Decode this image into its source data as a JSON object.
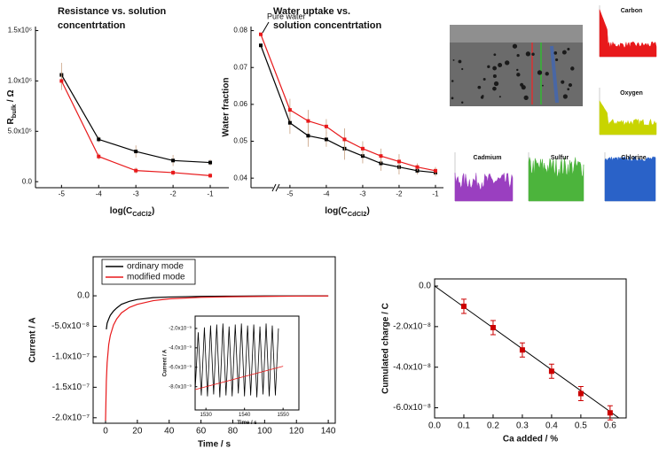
{
  "chart_data": [
    {
      "type": "line",
      "title": [
        "Resistance  vs. solution",
        "concentrtation"
      ],
      "x_label": {
        "base": "log(C",
        "sub": "CdCl2",
        "tail": ")"
      },
      "y_label": {
        "base": "R",
        "sub": "bulk",
        "tail": " / Ω"
      },
      "x": [
        -5,
        -4,
        -3,
        -2,
        -1
      ],
      "marker": "square",
      "series": [
        {
          "color": "#000000",
          "values": [
            1060000,
            420000,
            300000,
            210000,
            190000
          ],
          "errors": [
            120000,
            30000,
            60000,
            55000,
            30000
          ]
        },
        {
          "color": "#e8191b",
          "values": [
            1000000,
            250000,
            110000,
            90000,
            60000
          ],
          "errors": [
            90000,
            30000,
            30000,
            30000,
            25000
          ]
        }
      ],
      "xlim": [
        -5.7,
        -0.5
      ],
      "xticks": [
        -5,
        -4,
        -3,
        -2,
        -1
      ],
      "ylim": [
        -60000,
        1540000
      ],
      "yticks": [
        {
          "value": 0,
          "label": "0.0"
        },
        {
          "value": 500000,
          "label": "5.0x10⁵"
        },
        {
          "value": 1000000,
          "label": "1.0x10⁶"
        },
        {
          "value": 1500000,
          "label": "1.5x10⁶"
        }
      ]
    },
    {
      "type": "line",
      "title": [
        "Water uptake vs.",
        "solution concentrtation"
      ],
      "x_label": {
        "base": "log(C",
        "sub": "CdCl2",
        "tail": ")"
      },
      "y_label": "Water fraction",
      "annotation": "Pure water",
      "axis_break": true,
      "x": [
        -5,
        -4.5,
        -4,
        -3.5,
        -3,
        -2.5,
        -2,
        -1.5,
        -1
      ],
      "marker": "square",
      "series": [
        {
          "color": "#000000",
          "pure_water": 0.076,
          "values": [
            0.055,
            0.0515,
            0.0505,
            0.048,
            0.046,
            0.044,
            0.043,
            0.042,
            0.0415
          ],
          "errors": [
            0.003,
            0.003,
            0.002,
            0.003,
            0.002,
            0.002,
            0.002,
            0.001,
            0.001
          ]
        },
        {
          "color": "#e8191b",
          "pure_water": 0.079,
          "values": [
            0.0585,
            0.0555,
            0.054,
            0.0505,
            0.048,
            0.046,
            0.0445,
            0.043,
            0.042
          ],
          "errors": [
            0.003,
            0.003,
            0.002,
            0.003,
            0.002,
            0.002,
            0.002,
            0.001,
            0.001
          ]
        }
      ],
      "xlim": [
        -6.07,
        -0.78
      ],
      "xticks": [
        -5,
        -4,
        -3,
        -2,
        -1
      ],
      "ylim": [
        0.0374,
        0.0811
      ],
      "yticks": [
        0.04,
        0.05,
        0.06,
        0.07,
        0.08
      ]
    },
    {
      "type": "line",
      "x_label": "Time / s",
      "y_label": "Current / A",
      "legend": "upper left",
      "x": [
        0,
        0.5,
        1,
        2,
        3,
        5,
        7,
        10,
        15,
        20,
        30,
        40,
        60,
        80,
        100,
        120,
        140
      ],
      "series": [
        {
          "name": "ordinary mode",
          "color": "#000000",
          "values": [
            null,
            -5.5e-08,
            -4.5e-08,
            -3.8e-08,
            -3.2e-08,
            -2.5e-08,
            -2e-08,
            -1.4e-08,
            -9e-09,
            -6e-09,
            -3e-09,
            -2e-09,
            -1e-09,
            -5e-10,
            -3e-10,
            -2e-10,
            -1e-10
          ]
        },
        {
          "name": "modified mode",
          "color": "#e8191b",
          "values": [
            -2.05e-07,
            -1.4e-07,
            -1.1e-07,
            -8e-08,
            -6.5e-08,
            -4.8e-08,
            -3.8e-08,
            -2.8e-08,
            -1.9e-08,
            -1.4e-08,
            -8e-09,
            -5e-09,
            -2.5e-09,
            -1.5e-09,
            -1e-09,
            -5e-10,
            -3e-10
          ]
        }
      ],
      "xlim": [
        -7.8,
        144.4
      ],
      "xticks": [
        0,
        20,
        40,
        60,
        80,
        100,
        120,
        140
      ],
      "ylim": [
        -2.09e-07,
        6.4e-08
      ],
      "yticks": [
        {
          "value": 0,
          "label": "0.0"
        },
        {
          "value": -5e-08,
          "label": "-5.0x10⁻⁸"
        },
        {
          "value": -1e-07,
          "label": "-1.0x10⁻⁷"
        },
        {
          "value": -1.5e-07,
          "label": "-1.5x10⁻⁷"
        },
        {
          "value": -2e-07,
          "label": "-2.0x10⁻⁷"
        }
      ]
    },
    {
      "type": "line",
      "x_label": "Time / s",
      "y_label": "Current / A",
      "x": [
        1527.2,
        1528,
        1528.8,
        1529.6,
        1530.4,
        1531.2,
        1532,
        1532.8,
        1533.6,
        1534.4,
        1535.2,
        1536,
        1536.8,
        1537.6,
        1538.4,
        1539.2,
        1540,
        1540.8,
        1541.6,
        1542.4,
        1543.2,
        1544,
        1544.8,
        1545.6,
        1546.4,
        1547.2,
        1548,
        1548.8
      ],
      "series": [
        {
          "color": "#000000",
          "values": [
            -8.4e-09,
            -2.4e-09,
            -8.9e-09,
            -1.9e-09,
            -9e-09,
            -1.7e-09,
            -8.8e-09,
            -1.6e-09,
            -9.1e-09,
            -1.5e-09,
            -8.9e-09,
            -1.8e-09,
            -9e-09,
            -1.6e-09,
            -8.7e-09,
            -1.5e-09,
            -9e-09,
            -1.7e-09,
            -8.9e-09,
            -1.6e-09,
            -9.1e-09,
            -1.8e-09,
            -8.8e-09,
            -1.5e-09,
            -9e-09,
            -1.7e-09,
            -8.9e-09,
            -2e-09
          ]
        },
        {
          "color": "#e8191b",
          "x": [
            1527.2,
            1550
          ],
          "values": [
            -8.3e-09,
            -5.9e-09
          ]
        }
      ],
      "xlim": [
        1527.2,
        1554.1
      ],
      "xticks": [
        1530,
        1540,
        1550
      ],
      "ylim": [
        -1.04e-08,
        -7.3e-10
      ],
      "yticks": [
        {
          "value": -2e-09,
          "label": "-2.0x10⁻⁹"
        },
        {
          "value": -4e-09,
          "label": "-4.0x10⁻⁹"
        },
        {
          "value": -6e-09,
          "label": "-6.0x10⁻⁹"
        },
        {
          "value": -8e-09,
          "label": "-8.0x10⁻⁹"
        }
      ]
    },
    {
      "type": "scatter",
      "x_label": "Ca added / %",
      "y_label": "Cumulated charge / C",
      "x": [
        0.1,
        0.2,
        0.3,
        0.4,
        0.5,
        0.6
      ],
      "color": "#cc0000",
      "values": [
        -1e-08,
        -2.05e-08,
        -3.15e-08,
        -4.2e-08,
        -5.3e-08,
        -6.25e-08
      ],
      "errors": [
        3.5e-09,
        3.5e-09,
        3.5e-09,
        3.5e-09,
        3.5e-09,
        3.5e-09
      ],
      "fit": {
        "color": "#000000",
        "x": [
          0,
          0.63
        ],
        "values": [
          0,
          -6.5e-08
        ]
      },
      "xlim": [
        0,
        0.655
      ],
      "xticks": [
        {
          "value": 0,
          "label": "0.0"
        },
        0.1,
        0.2,
        0.3,
        0.4,
        0.5,
        0.6
      ],
      "ylim": [
        -6.5e-08,
        3.5e-09
      ],
      "yticks": [
        {
          "value": 0,
          "label": "0.0"
        },
        {
          "value": -2e-08,
          "label": "-2.0x10⁻⁸"
        },
        {
          "value": -4e-08,
          "label": "-4.0x10⁻⁸"
        },
        {
          "value": -6e-08,
          "label": "-6.0x10⁻⁸"
        }
      ]
    }
  ],
  "eds_panels": [
    {
      "label": "Carbon",
      "color": "#e8191b"
    },
    {
      "label": "Oxygen",
      "color": "#c8d400"
    },
    {
      "label": "Cadmium",
      "color": "#9a3fc0"
    },
    {
      "label": "Sulfur",
      "color": "#4cb43c"
    },
    {
      "label": "Chlorine",
      "color": "#2a62c8"
    }
  ]
}
